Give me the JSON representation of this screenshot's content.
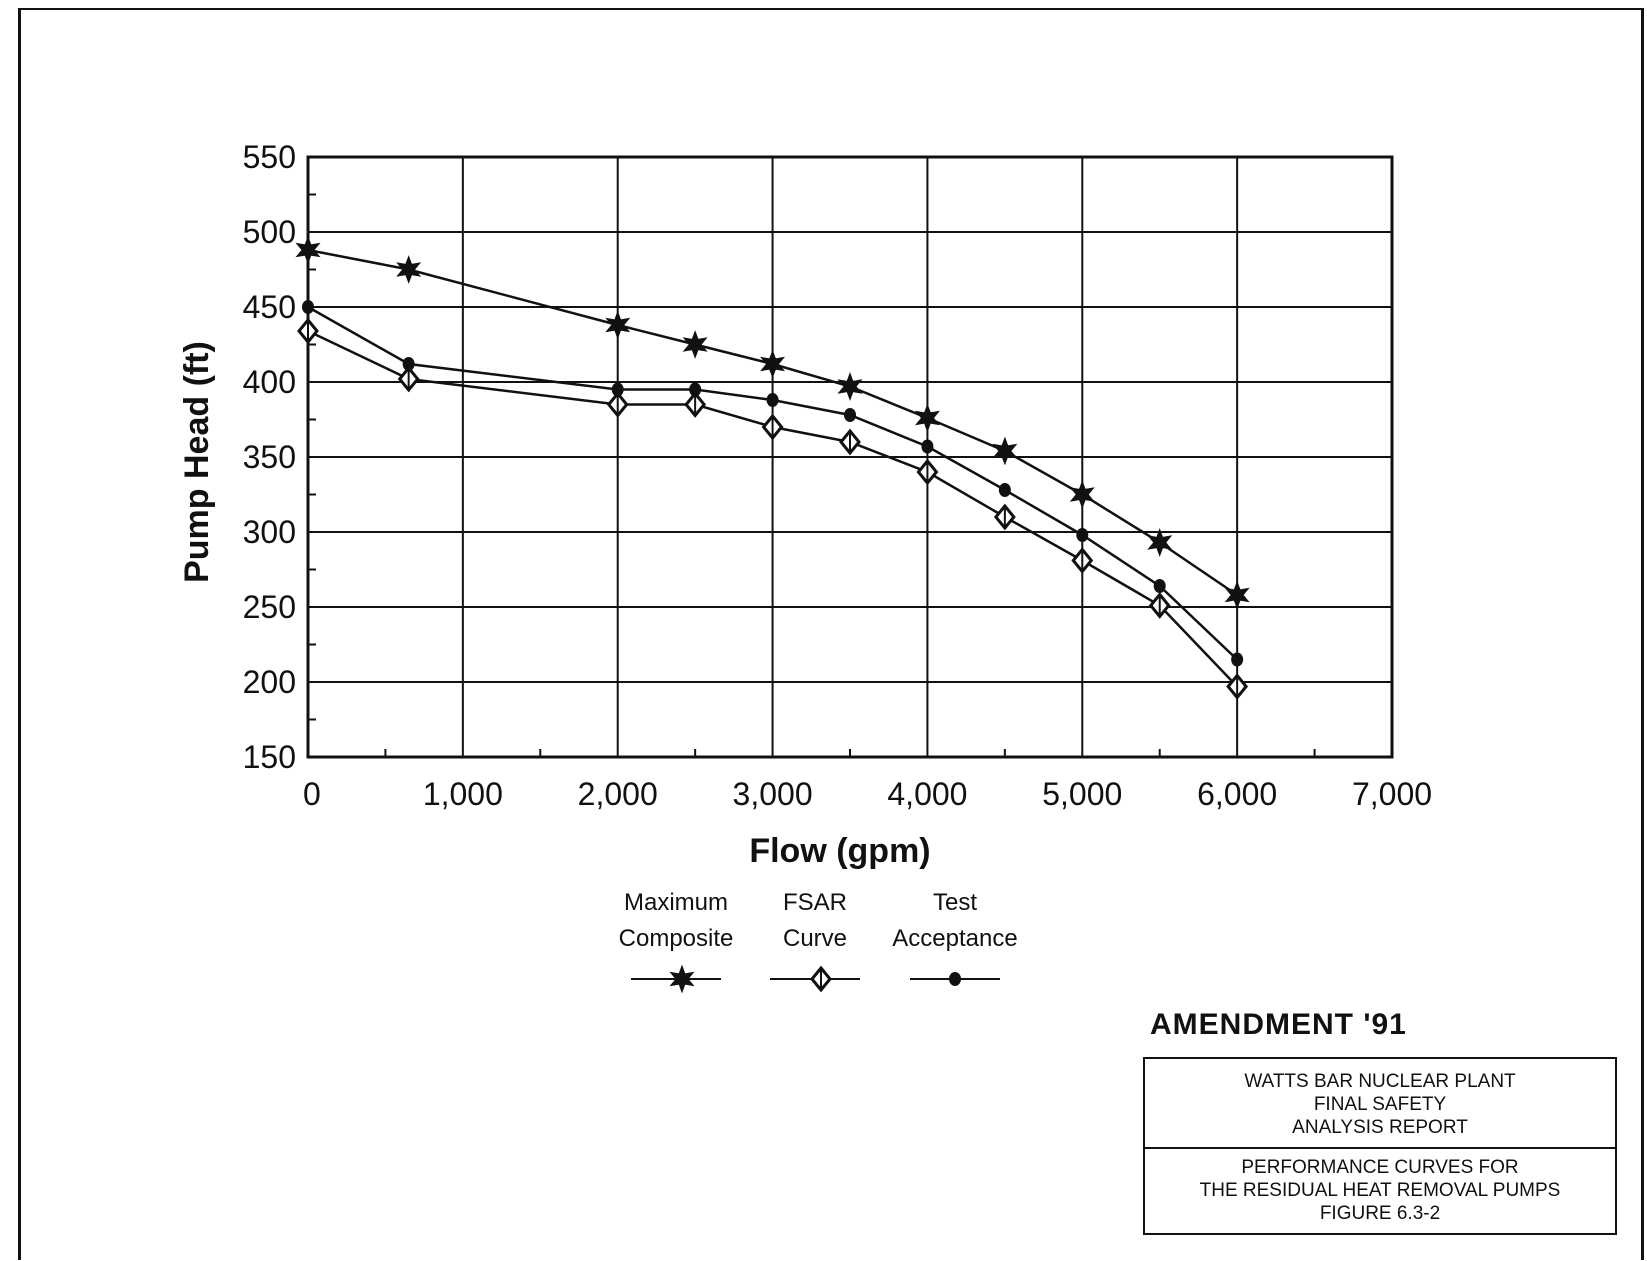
{
  "chart_data": {
    "type": "line",
    "xlabel": "Flow (gpm)",
    "ylabel": "Pump Head (ft)",
    "xlim": [
      0,
      7000
    ],
    "ylim": [
      150,
      550
    ],
    "xticks": [
      0,
      1000,
      2000,
      3000,
      4000,
      5000,
      6000,
      7000
    ],
    "xtick_labels": [
      "0",
      "1,000",
      "2,000",
      "3,000",
      "4,000",
      "5,000",
      "6,000",
      "7,000"
    ],
    "yticks": [
      150,
      200,
      250,
      300,
      350,
      400,
      450,
      500,
      550
    ],
    "ytick_labels": [
      "150",
      "200",
      "250",
      "300",
      "350",
      "400",
      "450",
      "500",
      "550"
    ],
    "grid": true,
    "legend_position": "bottom-center",
    "series": [
      {
        "name": "Maximum Composite",
        "marker": "star",
        "x": [
          0,
          650,
          2000,
          2500,
          3000,
          3500,
          4000,
          4500,
          5000,
          5500,
          6000
        ],
        "y": [
          488,
          475,
          438,
          425,
          412,
          397,
          376,
          354,
          325,
          293,
          258
        ]
      },
      {
        "name": "FSAR Curve",
        "marker": "diamond",
        "x": [
          0,
          650,
          2000,
          2500,
          3000,
          3500,
          4000,
          4500,
          5000,
          5500,
          6000
        ],
        "y": [
          434,
          402,
          385,
          385,
          370,
          360,
          340,
          310,
          281,
          251,
          197
        ]
      },
      {
        "name": "Test Acceptance",
        "marker": "dot",
        "x": [
          0,
          650,
          2000,
          2500,
          3000,
          3500,
          4000,
          4500,
          5000,
          5500,
          6000
        ],
        "y": [
          450,
          412,
          395,
          395,
          388,
          378,
          357,
          328,
          298,
          264,
          215
        ]
      }
    ],
    "legend_labels": [
      {
        "line1": "Maximum",
        "line2": "Composite"
      },
      {
        "line1": "FSAR",
        "line2": "Curve"
      },
      {
        "line1": "Test",
        "line2": "Acceptance"
      }
    ]
  },
  "amendment": "AMENDMENT '91",
  "title_block": {
    "upper": [
      "WATTS BAR NUCLEAR PLANT",
      "FINAL SAFETY",
      "ANALYSIS REPORT"
    ],
    "lower": [
      "PERFORMANCE CURVES FOR",
      "THE RESIDUAL HEAT REMOVAL PUMPS",
      "FIGURE 6.3-2"
    ]
  },
  "colors": {
    "ink": "#111111",
    "background": "#ffffff"
  }
}
